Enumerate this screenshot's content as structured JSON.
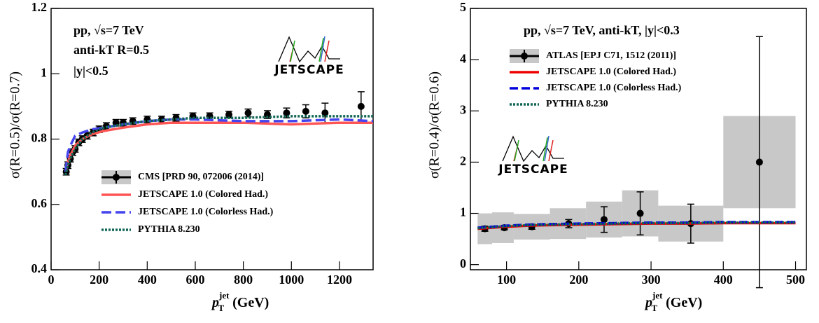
{
  "chart_data": [
    {
      "type": "errorbar-line",
      "y_label": "σ(R=0.5)/σ(R=0.7)",
      "x_label": {
        "main": "p",
        "sub": "T",
        "sup": "jet",
        "unit": "(GeV)"
      },
      "annotations": [
        "pp,  √s=7 TeV",
        "anti-kT  R=0.5",
        "|y|<0.5"
      ],
      "logo_text": "JETSCAPE",
      "xlim": [
        0,
        1340
      ],
      "ylim": [
        0.4,
        1.2
      ],
      "xticks": [
        0,
        200,
        400,
        600,
        800,
        1000,
        1200
      ],
      "yticks": [
        0.4,
        0.6,
        0.8,
        1,
        1.2
      ],
      "series": [
        {
          "name": "CMS [PRD 90, 072006 (2014)]",
          "color": "#000000",
          "kind": "points",
          "x": [
            63,
            70,
            80,
            90,
            100,
            115,
            130,
            150,
            175,
            200,
            230,
            270,
            300,
            340,
            400,
            460,
            520,
            590,
            660,
            740,
            820,
            900,
            980,
            1060,
            1140,
            1290
          ],
          "values": [
            0.7,
            0.72,
            0.74,
            0.76,
            0.77,
            0.79,
            0.8,
            0.81,
            0.82,
            0.83,
            0.84,
            0.85,
            0.85,
            0.855,
            0.86,
            0.86,
            0.865,
            0.87,
            0.87,
            0.875,
            0.88,
            0.875,
            0.88,
            0.885,
            0.88,
            0.9
          ],
          "errors": [
            0.01,
            0.01,
            0.01,
            0.01,
            0.01,
            0.01,
            0.01,
            0.01,
            0.01,
            0.01,
            0.01,
            0.01,
            0.01,
            0.01,
            0.01,
            0.01,
            0.01,
            0.01,
            0.01,
            0.01,
            0.012,
            0.012,
            0.015,
            0.02,
            0.03,
            0.045
          ]
        },
        {
          "name": "JETSCAPE 1.0 (Colored Had.)",
          "color": "#ff5555",
          "kind": "line",
          "dash": "none",
          "x": [
            60,
            70,
            80,
            100,
            130,
            170,
            220,
            300,
            400,
            500,
            600,
            800,
            1000,
            1200,
            1340
          ],
          "values": [
            0.7,
            0.73,
            0.75,
            0.78,
            0.8,
            0.815,
            0.825,
            0.835,
            0.845,
            0.85,
            0.85,
            0.85,
            0.845,
            0.85,
            0.85
          ]
        },
        {
          "name": "JETSCAPE 1.0 (Colorless Had.)",
          "color": "#4444ee",
          "kind": "line",
          "dash": "14 6",
          "x": [
            60,
            70,
            80,
            100,
            130,
            170,
            220,
            300,
            400,
            500,
            600,
            800,
            1000,
            1200,
            1340
          ],
          "values": [
            0.7,
            0.76,
            0.78,
            0.81,
            0.82,
            0.83,
            0.835,
            0.845,
            0.855,
            0.86,
            0.86,
            0.855,
            0.855,
            0.86,
            0.855
          ]
        },
        {
          "name": "PYTHIA 8.230",
          "color": "#116655",
          "kind": "line",
          "dash": "3 2",
          "x": [
            60,
            70,
            80,
            100,
            130,
            170,
            220,
            300,
            400,
            500,
            600,
            800,
            1000,
            1200,
            1340
          ],
          "values": [
            0.69,
            0.72,
            0.74,
            0.77,
            0.8,
            0.82,
            0.835,
            0.845,
            0.855,
            0.86,
            0.865,
            0.865,
            0.87,
            0.87,
            0.87
          ]
        }
      ]
    },
    {
      "type": "errorbar-line",
      "y_label": "σ(R=0.4)/σ(R=0.6)",
      "x_label": {
        "main": "p",
        "sub": "T",
        "sup": "jet",
        "unit": "(GeV)"
      },
      "annotations": [
        "pp,  √s=7 TeV, anti-kT, |y|<0.3"
      ],
      "logo_text": "JETSCAPE",
      "xlim": [
        50,
        515
      ],
      "ylim": [
        -0.1,
        5
      ],
      "xticks": [
        100,
        200,
        300,
        400,
        500
      ],
      "yticks": [
        0,
        1,
        2,
        3,
        4,
        5
      ],
      "series": [
        {
          "name": "ATLAS [EPJ C71, 1512 (2011)]",
          "color": "#000000",
          "kind": "points",
          "x": [
            70,
            97,
            135,
            186,
            235,
            285,
            355,
            450
          ],
          "values": [
            0.7,
            0.72,
            0.74,
            0.8,
            0.88,
            1.0,
            0.8,
            2.0
          ],
          "errors": [
            0.05,
            0.04,
            0.05,
            0.08,
            0.25,
            0.42,
            0.38,
            2.45
          ],
          "bin_edges": [
            60,
            80,
            110,
            160,
            210,
            260,
            310,
            400,
            500
          ],
          "sys_errors": [
            0.3,
            0.3,
            0.25,
            0.3,
            0.35,
            0.45,
            0.35,
            0.9
          ]
        },
        {
          "name": "JETSCAPE 1.0 (Colored Had.)",
          "color": "#ee0000",
          "kind": "line",
          "dash": "none",
          "x": [
            60,
            80,
            100,
            130,
            160,
            200,
            250,
            300,
            350,
            400,
            450,
            500
          ],
          "values": [
            0.7,
            0.72,
            0.74,
            0.76,
            0.77,
            0.78,
            0.79,
            0.8,
            0.8,
            0.81,
            0.81,
            0.81
          ]
        },
        {
          "name": "JETSCAPE 1.0 (Colorless Had.)",
          "color": "#0000dd",
          "kind": "line",
          "dash": "12 5",
          "x": [
            60,
            80,
            100,
            130,
            160,
            200,
            250,
            300,
            350,
            400,
            450,
            500
          ],
          "values": [
            0.72,
            0.74,
            0.76,
            0.78,
            0.79,
            0.8,
            0.81,
            0.82,
            0.82,
            0.83,
            0.83,
            0.83
          ]
        },
        {
          "name": "PYTHIA 8.230",
          "color": "#116655",
          "kind": "line",
          "dash": "3 2",
          "x": [
            60,
            80,
            100,
            130,
            160,
            200,
            250,
            300,
            350,
            400,
            450,
            500
          ],
          "values": [
            0.71,
            0.73,
            0.75,
            0.77,
            0.78,
            0.79,
            0.8,
            0.81,
            0.81,
            0.82,
            0.82,
            0.82
          ]
        }
      ]
    }
  ]
}
